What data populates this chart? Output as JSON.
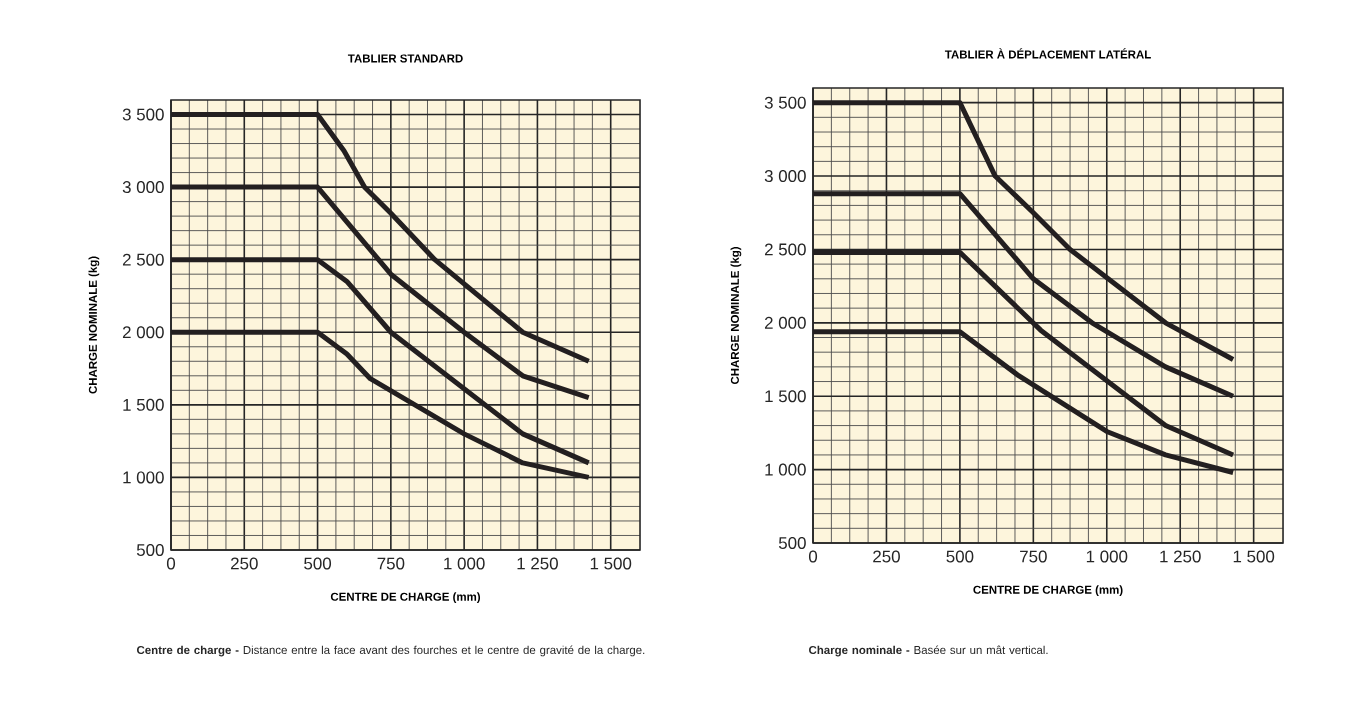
{
  "chart_data": [
    {
      "type": "line",
      "title": "TABLIER  STANDARD",
      "xlabel": "CENTRE DE CHARGE (mm)",
      "ylabel": "CHARGE NOMINALE (kg)",
      "xlim": [
        0,
        1600
      ],
      "ylim": [
        500,
        3600
      ],
      "xticks": [
        0,
        250,
        500,
        750,
        {
          "value": 1000,
          "label": "1 000"
        },
        {
          "value": 1250,
          "label": "1 250"
        },
        {
          "value": 1500,
          "label": "1 500"
        }
      ],
      "yticks": [
        500,
        {
          "value": 1000,
          "label": "1 000"
        },
        {
          "value": 1500,
          "label": "1 500"
        },
        {
          "value": 2000,
          "label": "2 000"
        },
        {
          "value": 2500,
          "label": "2 500"
        },
        {
          "value": 3000,
          "label": "3 000"
        },
        {
          "value": 3500,
          "label": "3 500"
        }
      ],
      "grid": true,
      "series": [
        {
          "color": "#231f20",
          "x": [
            0,
            500,
            590,
            660,
            750,
            900,
            1200,
            1425
          ],
          "values": [
            3500,
            3500,
            3250,
            3000,
            2820,
            2500,
            2000,
            1800
          ]
        },
        {
          "color": "#231f20",
          "x": [
            0,
            500,
            750,
            1000,
            1200,
            1425
          ],
          "values": [
            3000,
            3000,
            2400,
            2000,
            1700,
            1550
          ]
        },
        {
          "color": "#231f20",
          "x": [
            0,
            500,
            600,
            750,
            1200,
            1425
          ],
          "values": [
            2500,
            2500,
            2350,
            2000,
            1300,
            1100
          ]
        },
        {
          "color": "#231f20",
          "x": [
            0,
            500,
            600,
            680,
            1000,
            1200,
            1425
          ],
          "values": [
            2000,
            2000,
            1850,
            1680,
            1300,
            1100,
            1000
          ]
        }
      ],
      "annotations": [
        "**Centre de charge -** Distance entre la face avant des fourches et le centre de gravité de la charge."
      ]
    },
    {
      "type": "line",
      "title": "TABLIER À DÉPLACEMENT LATÉRAL",
      "xlabel": "CENTRE DE CHARGE (mm)",
      "ylabel": "CHARGE NOMINALE (kg)",
      "xlim": [
        0,
        1600
      ],
      "ylim": [
        500,
        3600
      ],
      "xticks": [
        0,
        250,
        500,
        750,
        {
          "value": 1000,
          "label": "1 000"
        },
        {
          "value": 1250,
          "label": "1 250"
        },
        {
          "value": 1500,
          "label": "1 500"
        }
      ],
      "yticks": [
        500,
        {
          "value": 1000,
          "label": "1 000"
        },
        {
          "value": 1500,
          "label": "1 500"
        },
        {
          "value": 2000,
          "label": "2 000"
        },
        {
          "value": 2500,
          "label": "2 500"
        },
        {
          "value": 3000,
          "label": "3 000"
        },
        {
          "value": 3500,
          "label": "3 500"
        }
      ],
      "grid": true,
      "series": [
        {
          "color": "#231f20",
          "x": [
            0,
            500,
            620,
            750,
            875,
            1200,
            1430
          ],
          "values": [
            3500,
            3500,
            3000,
            2750,
            2500,
            2000,
            1750
          ]
        },
        {
          "color": "#231f20",
          "x": [
            0,
            500,
            750,
            950,
            1200,
            1430
          ],
          "values": [
            2880,
            2880,
            2300,
            2000,
            1700,
            1500
          ]
        },
        {
          "color": "#231f20",
          "x": [
            0,
            500,
            775,
            1200,
            1430
          ],
          "values": [
            2480,
            2480,
            1950,
            1300,
            1100
          ]
        },
        {
          "color": "#231f20",
          "x": [
            0,
            500,
            700,
            1000,
            1200,
            1430
          ],
          "values": [
            1940,
            1940,
            1640,
            1260,
            1100,
            980
          ]
        }
      ],
      "annotations": [
        "**Charge nominale -**  Basée sur un mât vertical."
      ]
    }
  ]
}
